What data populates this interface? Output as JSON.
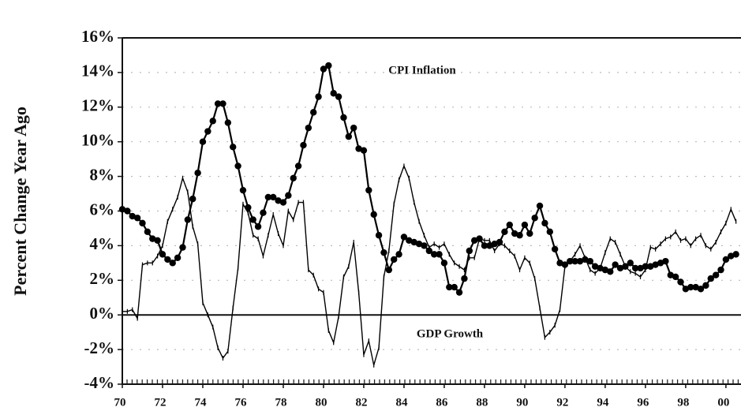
{
  "chart_data": {
    "type": "line",
    "ylabel": "Percent Change Year Ago",
    "x": [
      1970,
      1970.25,
      1970.5,
      1970.75,
      1971,
      1971.25,
      1971.5,
      1971.75,
      1972,
      1972.25,
      1972.5,
      1972.75,
      1973,
      1973.25,
      1973.5,
      1973.75,
      1974,
      1974.25,
      1974.5,
      1974.75,
      1975,
      1975.25,
      1975.5,
      1975.75,
      1976,
      1976.25,
      1976.5,
      1976.75,
      1977,
      1977.25,
      1977.5,
      1977.75,
      1978,
      1978.25,
      1978.5,
      1978.75,
      1979,
      1979.25,
      1979.5,
      1979.75,
      1980,
      1980.25,
      1980.5,
      1980.75,
      1981,
      1981.25,
      1981.5,
      1981.75,
      1982,
      1982.25,
      1982.5,
      1982.75,
      1983,
      1983.25,
      1983.5,
      1983.75,
      1984,
      1984.25,
      1984.5,
      1984.75,
      1985,
      1985.25,
      1985.5,
      1985.75,
      1986,
      1986.25,
      1986.5,
      1986.75,
      1987,
      1987.25,
      1987.5,
      1987.75,
      1988,
      1988.25,
      1988.5,
      1988.75,
      1989,
      1989.25,
      1989.5,
      1989.75,
      1990,
      1990.25,
      1990.5,
      1990.75,
      1991,
      1991.25,
      1991.5,
      1991.75,
      1992,
      1992.25,
      1992.5,
      1992.75,
      1993,
      1993.25,
      1993.5,
      1993.75,
      1994,
      1994.25,
      1994.5,
      1994.75,
      1995,
      1995.25,
      1995.5,
      1995.75,
      1996,
      1996.25,
      1996.5,
      1996.75,
      1997,
      1997.25,
      1997.5,
      1997.75,
      1998,
      1998.25,
      1998.5,
      1998.75,
      1999,
      1999.25,
      1999.5,
      1999.75,
      2000,
      2000.25,
      2000.5
    ],
    "series": [
      {
        "name": "CPI Inflation",
        "color": "#000000",
        "values": [
          6.1,
          6.0,
          5.7,
          5.6,
          5.3,
          4.8,
          4.4,
          4.3,
          3.5,
          3.2,
          3.0,
          3.3,
          3.9,
          5.5,
          6.7,
          8.2,
          10.0,
          10.6,
          11.2,
          12.2,
          12.2,
          11.1,
          9.7,
          8.6,
          7.2,
          6.2,
          5.5,
          5.1,
          5.9,
          6.8,
          6.8,
          6.6,
          6.5,
          6.9,
          7.9,
          8.6,
          9.8,
          10.8,
          11.7,
          12.6,
          14.2,
          14.4,
          12.8,
          12.6,
          11.4,
          10.3,
          10.8,
          9.6,
          9.5,
          7.2,
          5.8,
          4.6,
          3.6,
          2.6,
          3.2,
          3.5,
          4.5,
          4.3,
          4.2,
          4.1,
          4.0,
          3.7,
          3.5,
          3.5,
          3.0,
          1.6,
          1.6,
          1.3,
          2.1,
          3.7,
          4.3,
          4.4,
          4.0,
          4.0,
          4.1,
          4.2,
          4.8,
          5.2,
          4.7,
          4.6,
          5.2,
          4.7,
          5.6,
          6.3,
          5.3,
          4.8,
          3.8,
          3.0,
          2.9,
          3.1,
          3.1,
          3.1,
          3.2,
          3.1,
          2.8,
          2.7,
          2.6,
          2.5,
          2.9,
          2.7,
          2.8,
          3.0,
          2.7,
          2.7,
          2.8,
          2.8,
          2.9,
          3.0,
          3.1,
          2.3,
          2.2,
          1.9,
          1.5,
          1.6,
          1.6,
          1.5,
          1.7,
          2.1,
          2.3,
          2.6,
          3.2,
          3.4,
          3.5
        ]
      },
      {
        "name": "GDP Growth",
        "color": "#000000",
        "values": [
          0.2,
          0.2,
          0.3,
          -0.2,
          2.9,
          3.0,
          3.0,
          3.4,
          4.0,
          5.4,
          6.1,
          6.8,
          7.9,
          7.1,
          5.1,
          4.1,
          0.7,
          0.0,
          -0.7,
          -1.9,
          -2.5,
          -2.1,
          0.4,
          2.7,
          6.4,
          5.9,
          4.6,
          4.4,
          3.4,
          4.6,
          5.8,
          4.7,
          4.0,
          6.0,
          5.5,
          6.5,
          6.5,
          2.6,
          2.3,
          1.5,
          1.3,
          -0.9,
          -1.6,
          -0.1,
          2.2,
          2.8,
          4.2,
          1.3,
          -2.3,
          -1.5,
          -2.9,
          -1.9,
          2.2,
          3.7,
          6.4,
          7.8,
          8.6,
          7.9,
          6.5,
          5.4,
          4.6,
          3.9,
          4.1,
          3.9,
          4.1,
          3.5,
          3.0,
          2.8,
          2.6,
          3.3,
          3.3,
          4.4,
          4.3,
          4.3,
          3.7,
          4.1,
          4.0,
          3.7,
          3.4,
          2.6,
          3.3,
          3.0,
          2.1,
          0.4,
          -1.3,
          -1.0,
          -0.6,
          0.3,
          2.8,
          3.1,
          3.5,
          4.0,
          3.3,
          2.6,
          2.4,
          2.7,
          3.6,
          4.4,
          4.2,
          3.5,
          2.8,
          2.5,
          2.4,
          2.2,
          2.6,
          3.9,
          3.8,
          4.1,
          4.4,
          4.5,
          4.8,
          4.3,
          4.4,
          4.0,
          4.4,
          4.6,
          4.0,
          3.8,
          4.2,
          4.8,
          5.3,
          6.1,
          5.4
        ]
      }
    ],
    "xlim": [
      1970,
      2000.75
    ],
    "xticks": [
      {
        "value": 1970,
        "label": "70"
      },
      {
        "value": 1972,
        "label": "72"
      },
      {
        "value": 1974,
        "label": "74"
      },
      {
        "value": 1976,
        "label": "76"
      },
      {
        "value": 1978,
        "label": "78"
      },
      {
        "value": 1980,
        "label": "80"
      },
      {
        "value": 1982,
        "label": "82"
      },
      {
        "value": 1984,
        "label": "84"
      },
      {
        "value": 1986,
        "label": "86"
      },
      {
        "value": 1988,
        "label": "88"
      },
      {
        "value": 1990,
        "label": "90"
      },
      {
        "value": 1992,
        "label": "92"
      },
      {
        "value": 1994,
        "label": "94"
      },
      {
        "value": 1996,
        "label": "96"
      },
      {
        "value": 1998,
        "label": "98"
      },
      {
        "value": 2000,
        "label": "00"
      }
    ],
    "ylim": [
      -4,
      16
    ],
    "yticks": [
      {
        "value": -4,
        "label": "-4%"
      },
      {
        "value": -2,
        "label": "-2%"
      },
      {
        "value": 0,
        "label": "0%"
      },
      {
        "value": 2,
        "label": "2%"
      },
      {
        "value": 4,
        "label": "4%"
      },
      {
        "value": 6,
        "label": "6%"
      },
      {
        "value": 8,
        "label": "8%"
      },
      {
        "value": 10,
        "label": "10%"
      },
      {
        "value": 12,
        "label": "12%"
      },
      {
        "value": 14,
        "label": "14%"
      },
      {
        "value": 16,
        "label": "16%"
      }
    ],
    "grid": true
  }
}
